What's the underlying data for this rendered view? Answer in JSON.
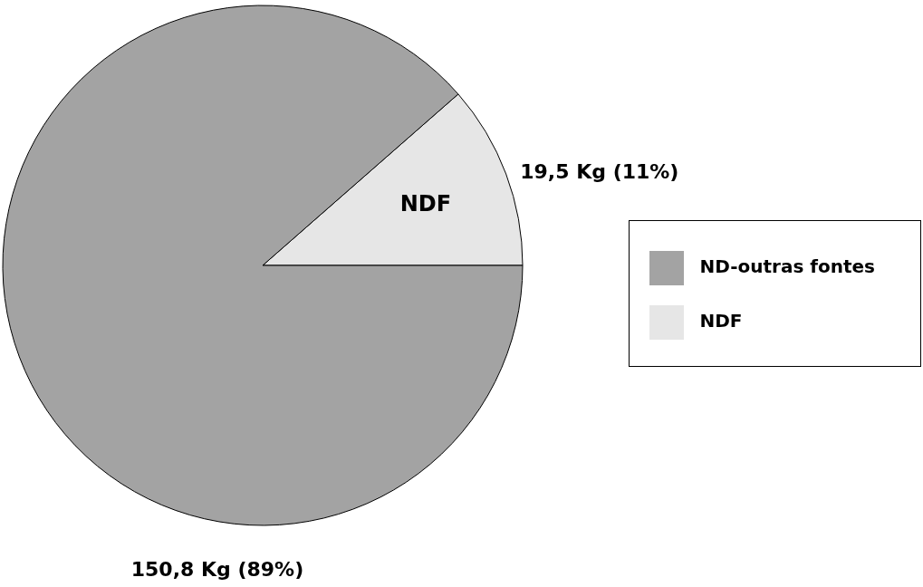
{
  "chart_data": {
    "type": "pie",
    "categories": [
      "NDF",
      "ND-outras fontes"
    ],
    "values": [
      19.5,
      150.8
    ],
    "colors": [
      "#e6e6e6",
      "#a3a3a3"
    ],
    "value_labels": [
      "19,5 Kg  (11%)",
      "150,8 Kg  (89%)"
    ],
    "annotations": [
      {
        "text": "NDF",
        "x": "NDF"
      }
    ],
    "legend": "right"
  }
}
